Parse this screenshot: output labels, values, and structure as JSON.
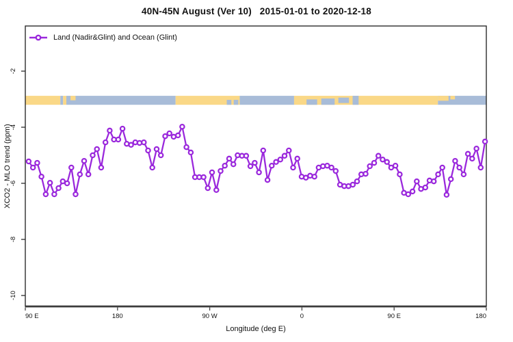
{
  "title": "40N-45N August (Ver 10)   2015-01-01 to 2020-12-18",
  "legend": {
    "label": "Land (Nadir&Glint) and Ocean (Glint)"
  },
  "axes": {
    "x_label": "Longitude (deg E)",
    "y_label": "XCO2 - MLO trend (ppm)"
  },
  "colors": {
    "series": "#9A28DC",
    "marker_fill": "#ffffff",
    "land": "#FAD887",
    "ocean": "#A8BCD8",
    "box": "#2b2b2b",
    "x_axis_bar": "#666666",
    "tick_text": "#111111"
  },
  "chart_data": {
    "type": "line",
    "title": "40N-45N August (Ver 10)   2015-01-01 to 2020-12-18",
    "xlabel": "Longitude (deg E)",
    "ylabel": "XCO2 - MLO trend (ppm)",
    "xlim": [
      90,
      540
    ],
    "ylim": [
      -10.4,
      -1.6
    ],
    "y_ticks": [
      -2,
      -4,
      -6,
      -8,
      -10
    ],
    "x_tick_positions": [
      90,
      180,
      270,
      360,
      450,
      540
    ],
    "x_tick_labels": [
      "90 E",
      "180",
      "90 W",
      "0",
      "90 E",
      "180"
    ],
    "grid": false,
    "legend_position": "top-left inside",
    "series": [
      {
        "name": "Land (Nadir&Glint) and Ocean (Glint)",
        "marker": "open-circle",
        "x_start": 93.3,
        "x_end": 538.7,
        "y": [
          -5.22,
          -5.44,
          -5.27,
          -5.76,
          -6.39,
          -5.98,
          -6.39,
          -6.17,
          -5.93,
          -6.0,
          -5.44,
          -6.39,
          -5.68,
          -5.2,
          -5.68,
          -5.0,
          -4.78,
          -5.44,
          -4.54,
          -4.12,
          -4.44,
          -4.44,
          -4.05,
          -4.59,
          -4.63,
          -4.54,
          -4.56,
          -4.54,
          -4.83,
          -5.44,
          -4.78,
          -5.0,
          -4.32,
          -4.22,
          -4.34,
          -4.29,
          -3.98,
          -4.71,
          -4.9,
          -5.78,
          -5.78,
          -5.78,
          -6.17,
          -5.61,
          -6.24,
          -5.56,
          -5.37,
          -5.12,
          -5.32,
          -5.0,
          -5.02,
          -5.02,
          -5.39,
          -5.27,
          -5.61,
          -4.83,
          -5.88,
          -5.37,
          -5.24,
          -5.15,
          -5.02,
          -4.83,
          -5.44,
          -5.12,
          -5.76,
          -5.8,
          -5.73,
          -5.76,
          -5.44,
          -5.39,
          -5.37,
          -5.44,
          -5.56,
          -6.05,
          -6.1,
          -6.1,
          -6.05,
          -5.93,
          -5.68,
          -5.66,
          -5.39,
          -5.27,
          -5.02,
          -5.15,
          -5.24,
          -5.44,
          -5.37,
          -5.68,
          -6.34,
          -6.39,
          -6.29,
          -5.93,
          -6.2,
          -6.15,
          -5.9,
          -5.93,
          -5.68,
          -5.44,
          -6.41,
          -5.85,
          -5.2,
          -5.44,
          -5.68,
          -4.95,
          -5.12,
          -4.76,
          -5.44,
          -4.51
        ]
      }
    ],
    "map_band": {
      "description": "land/ocean strip for 40N-45N latitude band",
      "top_value": -2.88,
      "bottom_value": -3.2,
      "segments": [
        {
          "from": 0.0,
          "to": 0.076,
          "type": "land"
        },
        {
          "from": 0.076,
          "to": 0.082,
          "type": "ocean"
        },
        {
          "from": 0.082,
          "to": 0.089,
          "type": "land"
        },
        {
          "from": 0.089,
          "to": 0.326,
          "type": "ocean"
        },
        {
          "from": 0.326,
          "to": 0.465,
          "type": "land"
        },
        {
          "from": 0.465,
          "to": 0.583,
          "type": "ocean"
        },
        {
          "from": 0.583,
          "to": 0.895,
          "type": "land"
        },
        {
          "from": 0.895,
          "to": 1.0,
          "type": "ocean"
        }
      ],
      "patches": [
        {
          "from": 0.098,
          "to": 0.109,
          "type": "land",
          "vpos": "top",
          "vfrac": 0.5
        },
        {
          "from": 0.437,
          "to": 0.447,
          "type": "ocean",
          "vpos": "bottom",
          "vfrac": 0.55
        },
        {
          "from": 0.452,
          "to": 0.462,
          "type": "ocean",
          "vpos": "bottom",
          "vfrac": 0.55
        },
        {
          "from": 0.61,
          "to": 0.633,
          "type": "ocean",
          "vpos": "bottom",
          "vfrac": 0.6
        },
        {
          "from": 0.642,
          "to": 0.671,
          "type": "ocean",
          "vpos": "bottom",
          "vfrac": 0.7
        },
        {
          "from": 0.679,
          "to": 0.702,
          "type": "ocean",
          "vpos": "middle",
          "vfrac": 0.6
        },
        {
          "from": 0.71,
          "to": 0.723,
          "type": "ocean",
          "vpos": "full",
          "vfrac": 1.0
        },
        {
          "from": 0.895,
          "to": 0.918,
          "type": "land",
          "vpos": "top",
          "vfrac": 0.55
        },
        {
          "from": 0.922,
          "to": 0.932,
          "type": "land",
          "vpos": "top",
          "vfrac": 0.4
        }
      ]
    }
  }
}
